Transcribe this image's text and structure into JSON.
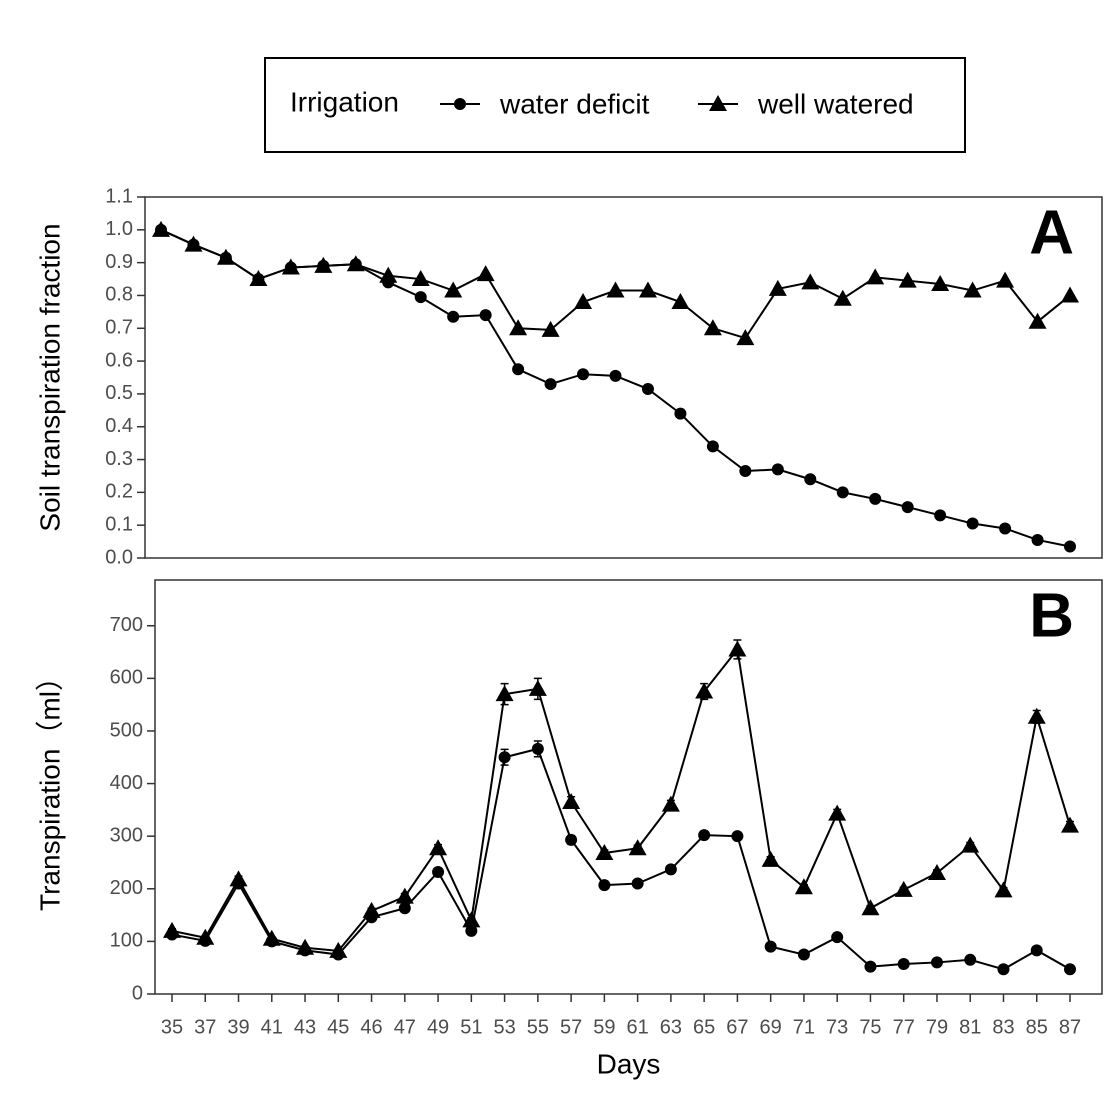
{
  "legend": {
    "title": "Irrigation",
    "position": "top"
  },
  "chart_data": [
    {
      "type": "line",
      "panel_label": "A",
      "y_label": "Soil  transpiration  fraction",
      "categories": [
        null,
        null,
        null,
        null,
        null,
        null,
        null,
        null,
        null,
        null,
        null,
        null,
        null,
        null,
        null,
        null,
        null,
        null,
        null,
        null,
        null,
        null,
        null,
        null,
        null,
        null,
        null,
        null,
        null
      ],
      "series": [
        {
          "marker": "circle",
          "color": "#000000",
          "values": [
            1.0,
            0.955,
            0.915,
            0.85,
            0.885,
            0.89,
            0.895,
            0.84,
            0.795,
            0.735,
            0.74,
            0.575,
            0.53,
            0.56,
            0.555,
            0.515,
            0.44,
            0.34,
            0.265,
            0.27,
            0.24,
            0.2,
            0.18,
            0.155,
            0.13,
            0.105,
            0.09,
            0.055,
            0.035
          ]
        },
        {
          "marker": "triangle",
          "color": "#000000",
          "values": [
            1.0,
            0.955,
            0.915,
            0.85,
            0.885,
            0.89,
            0.895,
            0.86,
            0.85,
            0.815,
            0.865,
            0.7,
            0.695,
            0.78,
            0.815,
            0.815,
            0.78,
            0.7,
            0.67,
            0.82,
            0.84,
            0.79,
            0.855,
            0.845,
            0.835,
            0.815,
            0.845,
            0.72,
            0.8
          ]
        }
      ],
      "ylim": [
        0,
        1.1
      ],
      "yticks": [
        {
          "value": 0,
          "label": "0.0"
        },
        {
          "value": 0.1,
          "label": "0.1"
        },
        {
          "value": 0.2,
          "label": "0.2"
        },
        {
          "value": 0.3,
          "label": "0.3"
        },
        {
          "value": 0.4,
          "label": "0.4"
        },
        {
          "value": 0.5,
          "label": "0.5"
        },
        {
          "value": 0.6,
          "label": "0.6"
        },
        {
          "value": 0.7,
          "label": "0.7"
        },
        {
          "value": 0.8,
          "label": "0.8"
        },
        {
          "value": 0.9,
          "label": "0.9"
        },
        {
          "value": 1.0,
          "label": "1.0"
        },
        {
          "value": 1.1,
          "label": "1.1"
        }
      ],
      "grid": false
    },
    {
      "type": "line",
      "panel_label": "B",
      "y_label": "Transpiration（ml）",
      "x_label": "Days",
      "categories": [
        "35",
        "37",
        "39",
        "41",
        "43",
        "45",
        "46",
        "47",
        "49",
        "51",
        "53",
        "55",
        "57",
        "59",
        "61",
        "63",
        "65",
        "67",
        "69",
        "71",
        "73",
        "75",
        "77",
        "79",
        "81",
        "83",
        "85",
        "87"
      ],
      "series": [
        {
          "name": "water deficit",
          "marker": "circle",
          "color": "#000000",
          "values": [
            113,
            101,
            210,
            100,
            83,
            75,
            146,
            163,
            232,
            120,
            450,
            466,
            293,
            207,
            210,
            237,
            302,
            300,
            90,
            75,
            108,
            52,
            57,
            60,
            65,
            47,
            83,
            47
          ],
          "errors": [
            4,
            3,
            5,
            3,
            3,
            3,
            5,
            5,
            6,
            4,
            15,
            15,
            8,
            5,
            5,
            6,
            6,
            6,
            4,
            3,
            4,
            3,
            3,
            3,
            3,
            3,
            4,
            3
          ]
        },
        {
          "name": "well watered",
          "marker": "triangle",
          "color": "#000000",
          "values": [
            120,
            107,
            218,
            105,
            88,
            82,
            158,
            185,
            277,
            140,
            570,
            580,
            365,
            268,
            277,
            360,
            575,
            655,
            255,
            203,
            343,
            163,
            198,
            230,
            282,
            197,
            527,
            320
          ],
          "errors": [
            4,
            3,
            6,
            3,
            3,
            3,
            5,
            6,
            7,
            5,
            20,
            20,
            10,
            6,
            6,
            8,
            15,
            18,
            6,
            5,
            8,
            5,
            5,
            6,
            6,
            5,
            12,
            8
          ]
        }
      ],
      "ylim": [
        0,
        787
      ],
      "yticks": [
        0,
        100,
        200,
        300,
        400,
        500,
        600,
        700
      ],
      "grid": false
    }
  ]
}
